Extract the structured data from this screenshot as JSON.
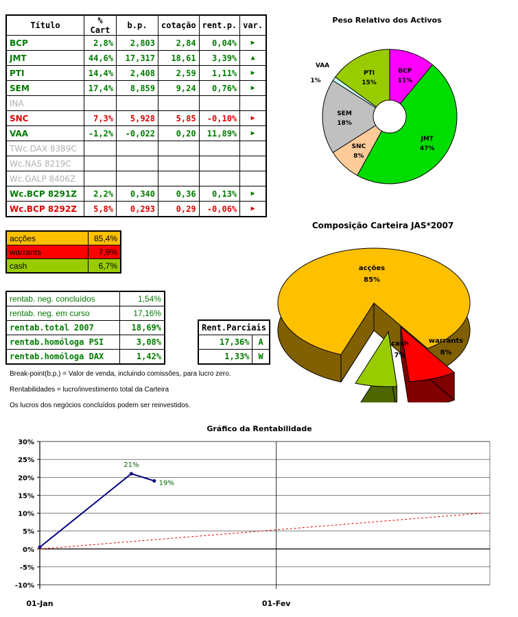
{
  "portfolio": {
    "headers": [
      "Título",
      "% Cart",
      "b.p.",
      "cotação",
      "rent.p.",
      "var."
    ],
    "rows": [
      {
        "name": "BCP",
        "cart": "2,8%",
        "bp": "2,803",
        "cot": "2,84",
        "rent": "0,04%",
        "var": "▶",
        "style": "green"
      },
      {
        "name": "JMT",
        "cart": "44,6%",
        "bp": "17,317",
        "cot": "18,61",
        "rent": "3,39%",
        "var": "▲",
        "style": "green"
      },
      {
        "name": "PTI",
        "cart": "14,4%",
        "bp": "2,408",
        "cot": "2,59",
        "rent": "1,11%",
        "var": "▶",
        "style": "green"
      },
      {
        "name": "SEM",
        "cart": "17,4%",
        "bp": "8,859",
        "cot": "9,24",
        "rent": "0,76%",
        "var": "▶",
        "style": "green"
      },
      {
        "name": "INA",
        "cart": "",
        "bp": "",
        "cot": "",
        "rent": "",
        "var": "",
        "style": "gray"
      },
      {
        "name": "SNC",
        "cart": "7,3%",
        "bp": "5,928",
        "cot": "5,85",
        "rent": "-0,10%",
        "var": "▶",
        "style": "red"
      },
      {
        "name": "VAA",
        "cart": "-1,2%",
        "bp": "-0,022",
        "cot": "0,20",
        "rent": "11,89%",
        "var": "▶",
        "style": "green"
      },
      {
        "name": "TWc.DAX 8389C",
        "cart": "",
        "bp": "",
        "cot": "",
        "rent": "",
        "var": "",
        "style": "gray"
      },
      {
        "name": "Wc.NAS 8219C",
        "cart": "",
        "bp": "",
        "cot": "",
        "rent": "",
        "var": "",
        "style": "gray"
      },
      {
        "name": "Wc.GALP 8406Z",
        "cart": "",
        "bp": "",
        "cot": "",
        "rent": "",
        "var": "",
        "style": "gray"
      },
      {
        "name": "Wc.BCP 8291Z",
        "cart": "2,2%",
        "bp": "0,340",
        "cot": "0,36",
        "rent": "0,13%",
        "var": "▶",
        "style": "green"
      },
      {
        "name": "Wc.BCP 8292Z",
        "cart": "5,8%",
        "bp": "0,293",
        "cot": "0,29",
        "rent": "-0,06%",
        "var": "▶",
        "style": "red"
      }
    ]
  },
  "allocation": [
    {
      "label": "acções",
      "value": "85,4%",
      "color": "#ffc000"
    },
    {
      "label": "warrants",
      "value": "7,9%",
      "color": "#ff0000"
    },
    {
      "label": "cash",
      "value": "6,7%",
      "color": "#99cc00"
    }
  ],
  "returns": [
    {
      "label": "rentab. neg. concluídos",
      "value": "1,54%",
      "bold": false
    },
    {
      "label": "rentab. neg. em curso",
      "value": "17,16%",
      "bold": false
    },
    {
      "label": "rentab.total 2007",
      "value": "18,69%",
      "bold": true
    },
    {
      "label": "rentab.homóloga PSI",
      "value": "3,08%",
      "bold": true
    },
    {
      "label": "rentab.homóloga DAX",
      "value": "1,42%",
      "bold": true
    }
  ],
  "partial": {
    "header": "Rent.Parciais",
    "rows": [
      {
        "value": "17,36%",
        "idx": "A"
      },
      {
        "value": "1,33%",
        "idx": "W"
      }
    ]
  },
  "notes": [
    "Break-point(b.p.) = Valor de venda, incluindo comissões, para lucro zero.",
    "Rentabilidades = lucro/investimento total da Carteira",
    "Os lucros dos negócios concluídos podem ser reinvestidos."
  ],
  "chart_data": [
    {
      "type": "pie",
      "title": "Peso Relativo dos Activos",
      "labels": [
        "BCP",
        "JMT",
        "SNC",
        "SEM",
        "VAA",
        "PTI"
      ],
      "values": [
        11,
        47,
        8,
        18,
        1,
        15
      ],
      "value_labels": [
        "11%",
        "47%",
        "8%",
        "18%",
        "1%",
        "15%"
      ],
      "colors": [
        "#ff00ff",
        "#00dd00",
        "#ffcc99",
        "#c0c0c0",
        "#ccffff",
        "#99cc00"
      ]
    },
    {
      "type": "pie",
      "title": "Composição Carteira JAS*2007",
      "labels": [
        "acções",
        "warrants",
        "cash"
      ],
      "values": [
        85,
        8,
        7
      ],
      "value_labels": [
        "85%",
        "8%",
        "7%"
      ],
      "colors": [
        "#ffc000",
        "#ff0000",
        "#99cc00"
      ]
    },
    {
      "type": "line",
      "title": "Gráfico da Rentabilidade",
      "xlabel": "",
      "ylabel": "",
      "x_ticks": [
        "01-Jan",
        "01-Fev"
      ],
      "ylim": [
        -10,
        30
      ],
      "y_ticks": [
        "-10%",
        "-5%",
        "0%",
        "5%",
        "10%",
        "15%",
        "20%",
        "25%",
        "30%"
      ],
      "series": [
        {
          "points": [
            {
              "x": "01-Jan",
              "y": 0.5
            },
            {
              "x": "13-Jan",
              "y": 21
            },
            {
              "x": "16-Jan",
              "y": 19
            }
          ],
          "color": "#000080",
          "point_labels": [
            "",
            "21%",
            "19%"
          ]
        },
        {
          "points": [
            {
              "x": "01-Jan",
              "y": 0
            },
            {
              "x": "28-Fev",
              "y": 10
            }
          ],
          "color": "#e00000",
          "dashed": true
        }
      ]
    }
  ]
}
